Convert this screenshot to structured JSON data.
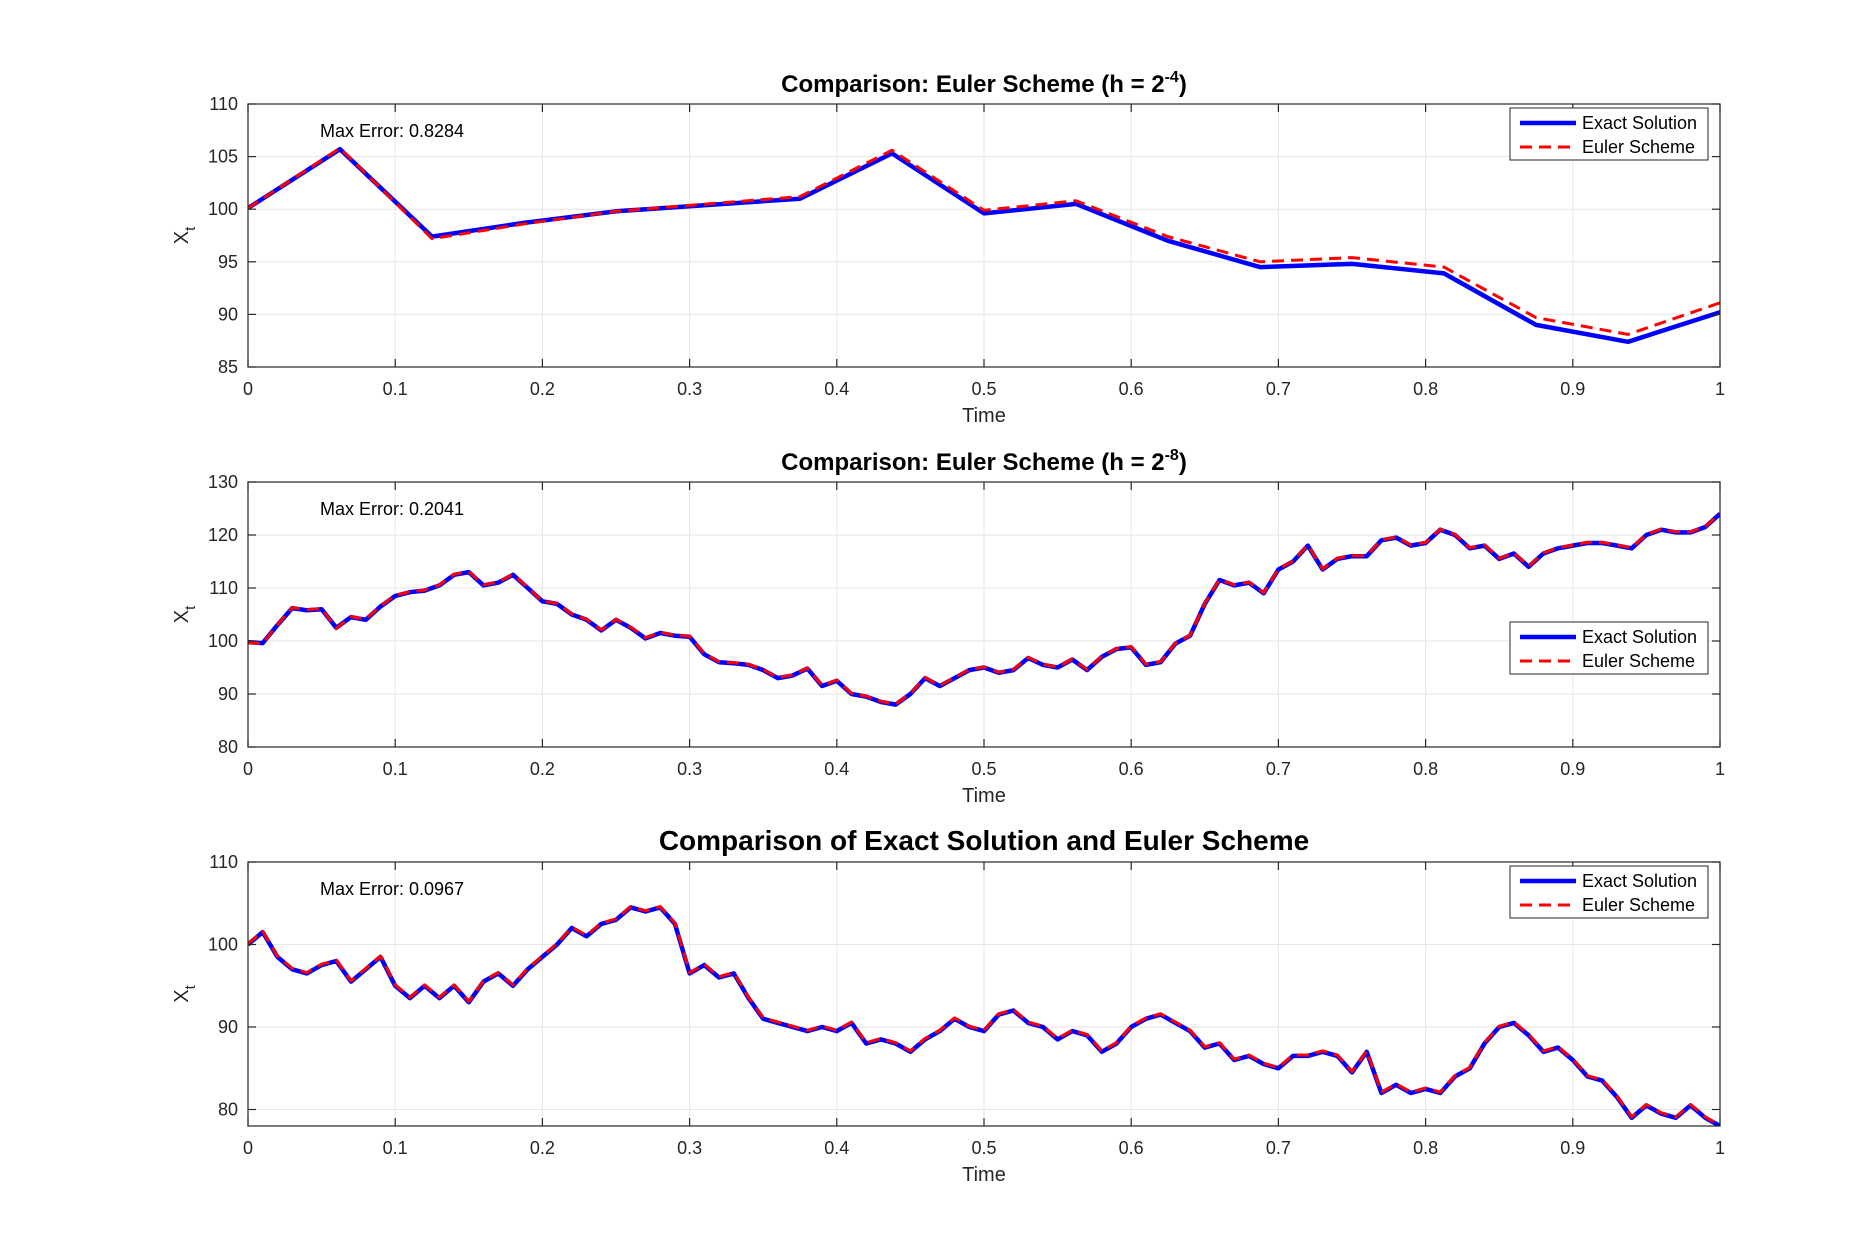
{
  "colors": {
    "exact": "#0000ff",
    "euler": "#ff0000",
    "grid": "#e6e6e6",
    "axis": "#262626"
  },
  "chart_data": [
    {
      "type": "line",
      "title": "Comparison: Euler Scheme (h = 2",
      "title_exp": "-4",
      "title_tail": ")",
      "xlabel": "Time",
      "ylabel": "X",
      "ylabel_sub": "t",
      "xlim": [
        0,
        1
      ],
      "ylim": [
        85,
        110
      ],
      "xticks": [
        0,
        0.1,
        0.2,
        0.3,
        0.4,
        0.5,
        0.6,
        0.7,
        0.8,
        0.9,
        1
      ],
      "xtick_labels": [
        "0",
        "0.1",
        "0.2",
        "0.3",
        "0.4",
        "0.5",
        "0.6",
        "0.7",
        "0.8",
        "0.9",
        "1"
      ],
      "yticks": [
        85,
        90,
        95,
        100,
        105,
        110
      ],
      "ytick_labels": [
        "85",
        "90",
        "95",
        "100",
        "105",
        "110"
      ],
      "grid": true,
      "legend_position": "top-right",
      "annotation": "Max Error: 0.8284",
      "x": [
        0,
        0.0625,
        0.125,
        0.1875,
        0.25,
        0.3125,
        0.375,
        0.4375,
        0.5,
        0.5625,
        0.625,
        0.6875,
        0.75,
        0.8125,
        0.875,
        0.9375,
        1
      ],
      "series": [
        {
          "name": "Exact Solution",
          "values": [
            100.1,
            105.7,
            97.4,
            98.7,
            99.8,
            100.4,
            101.0,
            105.3,
            99.6,
            100.5,
            97.0,
            94.5,
            94.8,
            93.9,
            89.0,
            87.4,
            90.2
          ]
        },
        {
          "name": "Euler Scheme",
          "values": [
            100.1,
            105.8,
            97.2,
            98.6,
            99.8,
            100.5,
            101.2,
            105.6,
            99.9,
            100.8,
            97.4,
            95.0,
            95.4,
            94.5,
            89.7,
            88.1,
            91.1
          ]
        }
      ]
    },
    {
      "type": "line",
      "title": "Comparison: Euler Scheme (h = 2",
      "title_exp": "-8",
      "title_tail": ")",
      "xlabel": "Time",
      "ylabel": "X",
      "ylabel_sub": "t",
      "xlim": [
        0,
        1
      ],
      "ylim": [
        80,
        130
      ],
      "xticks": [
        0,
        0.1,
        0.2,
        0.3,
        0.4,
        0.5,
        0.6,
        0.7,
        0.8,
        0.9,
        1
      ],
      "xtick_labels": [
        "0",
        "0.1",
        "0.2",
        "0.3",
        "0.4",
        "0.5",
        "0.6",
        "0.7",
        "0.8",
        "0.9",
        "1"
      ],
      "yticks": [
        80,
        90,
        100,
        110,
        120,
        130
      ],
      "ytick_labels": [
        "80",
        "90",
        "100",
        "110",
        "120",
        "130"
      ],
      "grid": true,
      "legend_position": "middle-right",
      "annotation": "Max Error: 0.2041",
      "x": [
        0,
        0.01,
        0.02,
        0.03,
        0.04,
        0.05,
        0.06,
        0.07,
        0.08,
        0.09,
        0.1,
        0.11,
        0.12,
        0.13,
        0.14,
        0.15,
        0.16,
        0.17,
        0.18,
        0.19,
        0.2,
        0.21,
        0.22,
        0.23,
        0.24,
        0.25,
        0.26,
        0.27,
        0.28,
        0.29,
        0.3,
        0.31,
        0.32,
        0.33,
        0.34,
        0.35,
        0.36,
        0.37,
        0.38,
        0.39,
        0.4,
        0.41,
        0.42,
        0.43,
        0.44,
        0.45,
        0.46,
        0.47,
        0.48,
        0.49,
        0.5,
        0.51,
        0.52,
        0.53,
        0.54,
        0.55,
        0.56,
        0.57,
        0.58,
        0.59,
        0.6,
        0.61,
        0.62,
        0.63,
        0.64,
        0.65,
        0.66,
        0.67,
        0.68,
        0.69,
        0.7,
        0.71,
        0.72,
        0.73,
        0.74,
        0.75,
        0.76,
        0.77,
        0.78,
        0.79,
        0.8,
        0.81,
        0.82,
        0.83,
        0.84,
        0.85,
        0.86,
        0.87,
        0.88,
        0.89,
        0.9,
        0.91,
        0.92,
        0.93,
        0.94,
        0.95,
        0.96,
        0.97,
        0.98,
        0.99,
        1.0
      ],
      "series": [
        {
          "name": "Exact Solution",
          "values": [
            99.8,
            99.6,
            103.0,
            106.2,
            105.8,
            106.0,
            102.5,
            104.5,
            104.0,
            106.5,
            108.5,
            109.2,
            109.5,
            110.5,
            112.5,
            113.0,
            110.5,
            111.0,
            112.5,
            110.0,
            107.5,
            107.0,
            105.0,
            104.0,
            102.0,
            104.0,
            102.5,
            100.5,
            101.5,
            101.0,
            100.8,
            97.5,
            96.0,
            95.8,
            95.5,
            94.5,
            93.0,
            93.5,
            94.8,
            91.5,
            92.5,
            90.0,
            89.5,
            88.5,
            88.0,
            90.0,
            93.0,
            91.5,
            93.0,
            94.5,
            95.0,
            94.0,
            94.5,
            96.8,
            95.5,
            95.0,
            96.5,
            94.5,
            97.0,
            98.5,
            98.8,
            95.5,
            96.0,
            99.5,
            101.0,
            107.0,
            111.5,
            110.5,
            111.0,
            109.0,
            113.5,
            115.0,
            118.0,
            113.5,
            115.5,
            116.0,
            116.0,
            119.0,
            119.5,
            118.0,
            118.5,
            121.0,
            120.0,
            117.5,
            118.0,
            115.5,
            116.5,
            114.0,
            116.5,
            117.5,
            118.0,
            118.5,
            118.5,
            118.0,
            117.5,
            120.0,
            121.0,
            120.5,
            120.5,
            121.5,
            124.0
          ]
        },
        {
          "name": "Euler Scheme",
          "values": [
            99.7,
            99.5,
            103.1,
            106.3,
            105.9,
            106.1,
            102.4,
            104.6,
            104.1,
            106.6,
            108.6,
            109.3,
            109.6,
            110.6,
            112.6,
            113.1,
            110.6,
            111.1,
            112.6,
            110.1,
            107.5,
            107.1,
            105.1,
            104.1,
            102.1,
            104.1,
            102.6,
            100.6,
            101.6,
            101.1,
            100.9,
            97.6,
            96.1,
            95.9,
            95.6,
            94.6,
            93.1,
            93.6,
            94.9,
            91.6,
            92.6,
            90.1,
            89.6,
            88.6,
            88.1,
            90.1,
            93.1,
            91.6,
            93.1,
            94.6,
            95.1,
            94.1,
            94.6,
            96.9,
            95.6,
            95.1,
            96.6,
            94.6,
            97.1,
            98.6,
            98.9,
            95.6,
            96.1,
            99.6,
            101.1,
            107.1,
            111.6,
            110.6,
            111.1,
            109.1,
            113.6,
            115.1,
            118.1,
            113.6,
            115.6,
            116.1,
            116.1,
            119.1,
            119.6,
            118.1,
            118.6,
            121.1,
            120.1,
            117.6,
            118.1,
            115.6,
            116.6,
            114.1,
            116.6,
            117.6,
            118.1,
            118.6,
            118.6,
            118.1,
            117.6,
            120.1,
            121.1,
            120.6,
            120.6,
            121.6,
            124.1
          ]
        }
      ]
    },
    {
      "type": "line",
      "title": "Comparison of Exact Solution and Euler Scheme",
      "title_exp": "",
      "title_tail": "",
      "xlabel": "Time",
      "ylabel": "X",
      "ylabel_sub": "t",
      "xlim": [
        0,
        1
      ],
      "ylim": [
        78,
        110
      ],
      "xticks": [
        0,
        0.1,
        0.2,
        0.3,
        0.4,
        0.5,
        0.6,
        0.7,
        0.8,
        0.9,
        1
      ],
      "xtick_labels": [
        "0",
        "0.1",
        "0.2",
        "0.3",
        "0.4",
        "0.5",
        "0.6",
        "0.7",
        "0.8",
        "0.9",
        "1"
      ],
      "yticks": [
        80,
        90,
        100,
        110
      ],
      "ytick_labels": [
        "80",
        "90",
        "100",
        "110"
      ],
      "grid": true,
      "legend_position": "top-right",
      "annotation": "Max Error: 0.0967",
      "x": [
        0,
        0.01,
        0.02,
        0.03,
        0.04,
        0.05,
        0.06,
        0.07,
        0.08,
        0.09,
        0.1,
        0.11,
        0.12,
        0.13,
        0.14,
        0.15,
        0.16,
        0.17,
        0.18,
        0.19,
        0.2,
        0.21,
        0.22,
        0.23,
        0.24,
        0.25,
        0.26,
        0.27,
        0.28,
        0.29,
        0.3,
        0.31,
        0.32,
        0.33,
        0.34,
        0.35,
        0.36,
        0.37,
        0.38,
        0.39,
        0.4,
        0.41,
        0.42,
        0.43,
        0.44,
        0.45,
        0.46,
        0.47,
        0.48,
        0.49,
        0.5,
        0.51,
        0.52,
        0.53,
        0.54,
        0.55,
        0.56,
        0.57,
        0.58,
        0.59,
        0.6,
        0.61,
        0.62,
        0.63,
        0.64,
        0.65,
        0.66,
        0.67,
        0.68,
        0.69,
        0.7,
        0.71,
        0.72,
        0.73,
        0.74,
        0.75,
        0.76,
        0.77,
        0.78,
        0.79,
        0.8,
        0.81,
        0.82,
        0.83,
        0.84,
        0.85,
        0.86,
        0.87,
        0.88,
        0.89,
        0.9,
        0.91,
        0.92,
        0.93,
        0.94,
        0.95,
        0.96,
        0.97,
        0.98,
        0.99,
        1.0
      ],
      "series": [
        {
          "name": "Exact Solution",
          "values": [
            100.0,
            101.5,
            98.5,
            97.0,
            96.5,
            97.5,
            98.0,
            95.5,
            97.0,
            98.5,
            95.0,
            93.5,
            95.0,
            93.5,
            95.0,
            93.0,
            95.5,
            96.5,
            95.0,
            97.0,
            98.5,
            100.0,
            102.0,
            101.0,
            102.5,
            103.0,
            104.5,
            104.0,
            104.5,
            102.5,
            96.5,
            97.5,
            96.0,
            96.5,
            93.5,
            91.0,
            90.5,
            90.0,
            89.5,
            90.0,
            89.5,
            90.5,
            88.0,
            88.5,
            88.0,
            87.0,
            88.5,
            89.5,
            91.0,
            90.0,
            89.5,
            91.5,
            92.0,
            90.5,
            90.0,
            88.5,
            89.5,
            89.0,
            87.0,
            88.0,
            90.0,
            91.0,
            91.5,
            90.5,
            89.5,
            87.5,
            88.0,
            86.0,
            86.5,
            85.5,
            85.0,
            86.5,
            86.5,
            87.0,
            86.5,
            84.5,
            87.0,
            82.0,
            83.0,
            82.0,
            82.5,
            82.0,
            84.0,
            85.0,
            88.0,
            90.0,
            90.5,
            89.0,
            87.0,
            87.5,
            86.0,
            84.0,
            83.5,
            81.5,
            79.0,
            80.5,
            79.5,
            79.0,
            80.5,
            79.0,
            78.0
          ]
        },
        {
          "name": "Euler Scheme",
          "values": [
            100.1,
            101.6,
            98.6,
            97.1,
            96.6,
            97.6,
            98.1,
            95.6,
            97.1,
            98.6,
            95.1,
            93.6,
            95.1,
            93.6,
            95.1,
            93.1,
            95.6,
            96.6,
            95.1,
            97.1,
            98.6,
            100.1,
            102.1,
            101.1,
            102.6,
            103.1,
            104.6,
            104.1,
            104.6,
            102.6,
            96.6,
            97.6,
            96.1,
            96.6,
            93.6,
            91.1,
            90.6,
            90.1,
            89.6,
            90.1,
            89.6,
            90.6,
            88.1,
            88.6,
            88.1,
            87.1,
            88.6,
            89.6,
            91.1,
            90.1,
            89.6,
            91.6,
            92.1,
            90.6,
            90.1,
            88.6,
            89.6,
            89.1,
            87.1,
            88.1,
            90.1,
            91.1,
            91.6,
            90.6,
            89.6,
            87.6,
            88.1,
            86.1,
            86.6,
            85.6,
            85.1,
            86.6,
            86.6,
            87.1,
            86.6,
            84.6,
            87.1,
            82.1,
            83.1,
            82.1,
            82.6,
            82.1,
            84.1,
            85.1,
            88.1,
            90.1,
            90.6,
            89.1,
            87.1,
            87.6,
            86.1,
            84.1,
            83.6,
            81.6,
            79.1,
            80.6,
            79.6,
            79.1,
            80.6,
            79.1,
            78.1
          ]
        }
      ]
    }
  ]
}
